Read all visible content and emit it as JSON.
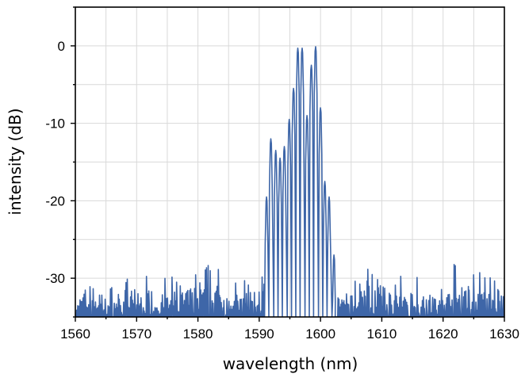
{
  "chart_data": {
    "type": "line",
    "title": "",
    "xlabel": "wavelength (nm)",
    "ylabel": "intensity (dB)",
    "xlim": [
      1560,
      1630
    ],
    "ylim": [
      -35,
      5
    ],
    "x_ticks": [
      1560,
      1570,
      1580,
      1590,
      1600,
      1610,
      1620,
      1630
    ],
    "x_tick_labels": [
      "1560",
      "1570",
      "1580",
      "1590",
      "1600",
      "1610",
      "1620",
      "1630"
    ],
    "y_ticks": [
      0,
      -10,
      -20,
      -30
    ],
    "y_tick_labels": [
      "0",
      "-10",
      "-20",
      "-30"
    ],
    "grid": true,
    "line_color": "#3e66a8",
    "series": [
      {
        "comb_peaks": {
          "x": [
            1591.2,
            1591.9,
            1592.7,
            1593.4,
            1594.1,
            1594.9,
            1595.6,
            1596.3,
            1597.0,
            1597.8,
            1598.5,
            1599.2,
            1600.0,
            1600.7,
            1601.4,
            1602.2
          ],
          "y": [
            -19.5,
            -12.0,
            -13.5,
            -14.5,
            -13.0,
            -9.5,
            -5.5,
            -0.3,
            -0.3,
            -9.0,
            -2.5,
            -0.1,
            -8.0,
            -17.5,
            -19.5,
            -27.0
          ]
        },
        "noise_floor": {
          "x": [
            1560.0,
            1562.7,
            1565.4,
            1568.1,
            1570.8,
            1573.5,
            1576.2,
            1578.9,
            1581.6,
            1584.3,
            1587.0,
            1589.7,
            1604.0,
            1606.5,
            1609.0,
            1611.5,
            1614.0,
            1616.5,
            1619.0,
            1621.5,
            1624.0,
            1626.5,
            1629.0
          ],
          "y": [
            -31,
            -27.5,
            -31,
            -30,
            -29,
            -30,
            -29,
            -28,
            -28,
            -29,
            -30,
            -28,
            -31,
            -28,
            -27,
            -29,
            -30,
            -28,
            -31,
            -28,
            -28,
            -29,
            -30
          ]
        }
      }
    ]
  }
}
